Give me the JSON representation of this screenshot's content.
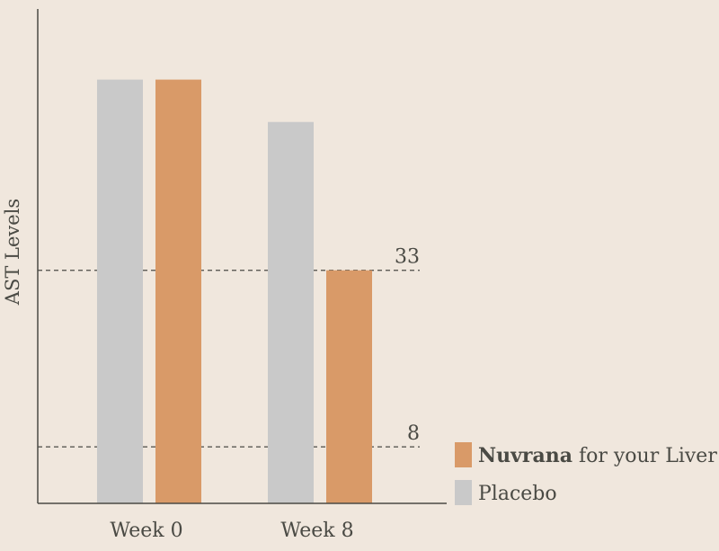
{
  "chart_data": {
    "type": "bar",
    "categories": [
      "Week 0",
      "Week 8"
    ],
    "series": [
      {
        "name": "Placebo",
        "values": [
          60,
          54
        ],
        "color": "#c9c9c9"
      },
      {
        "name": "Nuvrana for your Liver",
        "values": [
          60,
          33
        ],
        "color": "#d99a68"
      }
    ],
    "ylabel": "AST Levels",
    "xlabel": "",
    "ylim": [
      0,
      70
    ],
    "reference_lines": [
      {
        "value": 33,
        "label": "33"
      },
      {
        "value": 8,
        "label": "8"
      }
    ],
    "legend": {
      "placement": "bottom-right",
      "items": [
        {
          "series": "Nuvrana for your Liver",
          "brand": "Nuvrana",
          "rest": " for your Liver",
          "color": "#d99a68"
        },
        {
          "series": "Placebo",
          "brand": "",
          "rest": "Placebo",
          "color": "#c9c9c9"
        }
      ]
    },
    "grid": false
  }
}
